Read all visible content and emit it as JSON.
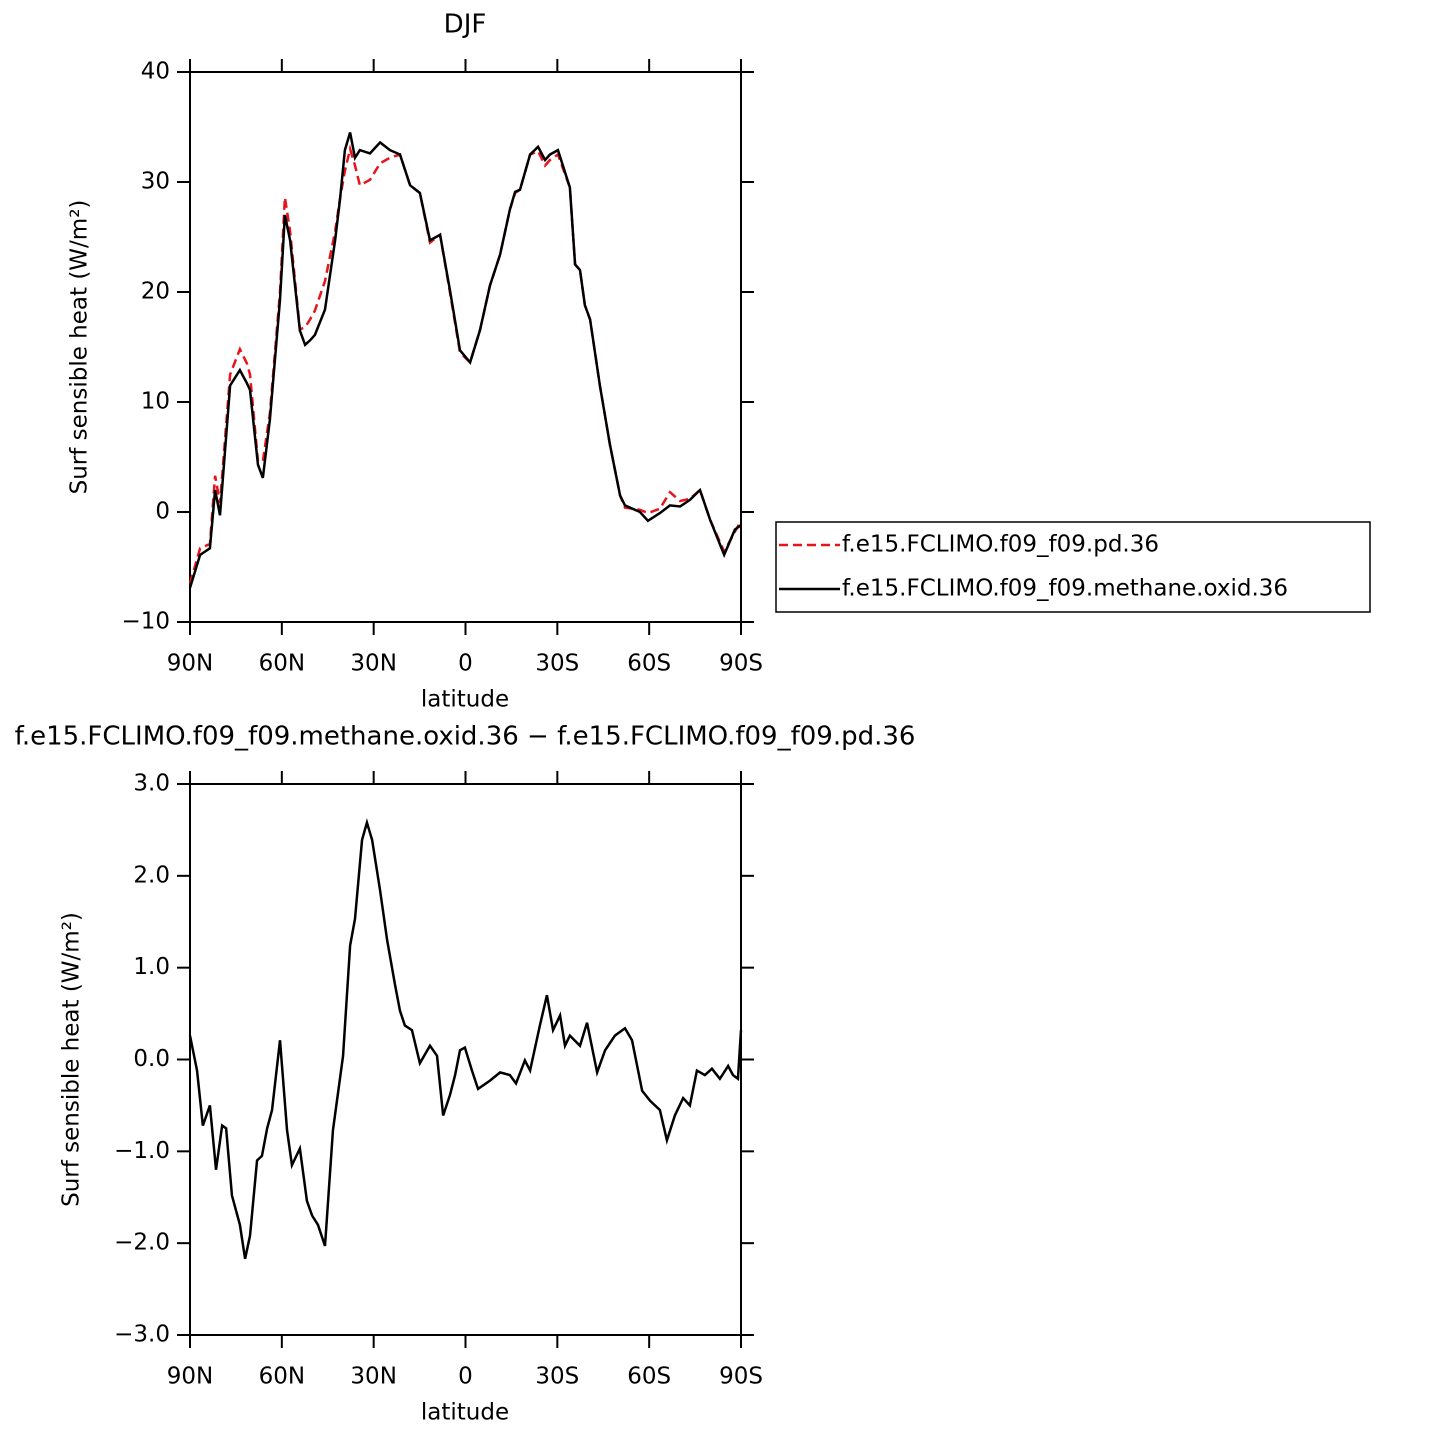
{
  "chart_data": [
    {
      "type": "line",
      "title": "DJF",
      "xlabel": "latitude",
      "ylabel": "Surf sensible heat (W/m²)",
      "x": [
        90.0,
        86.7,
        83.5,
        81.8,
        80.2,
        76.9,
        73.7,
        71.4,
        70.4,
        67.8,
        66.2,
        63.9,
        60.6,
        59.0,
        57.3,
        54.1,
        52.4,
        50.8,
        49.2,
        45.9,
        42.6,
        41.0,
        39.4,
        37.7,
        36.1,
        34.5,
        31.2,
        27.9,
        24.7,
        21.4,
        18.1,
        14.9,
        11.6,
        8.3,
        5.1,
        1.8,
        -1.5,
        -4.7,
        -8.0,
        -11.3,
        -14.5,
        -16.2,
        -17.8,
        -21.1,
        -23.7,
        -26.0,
        -27.6,
        -30.2,
        -34.1,
        -35.8,
        -37.4,
        -39.0,
        -40.7,
        -43.9,
        -47.2,
        -50.5,
        -52.1,
        -57.0,
        -59.6,
        -63.5,
        -66.8,
        -70.1,
        -73.3,
        -76.6,
        -79.9,
        -84.5,
        -88.0,
        -90.0
      ],
      "series": [
        {
          "name": "f.e15.FCLIMO.f09_f09.pd.36",
          "color": "#e8141c",
          "dashed": true,
          "values": [
            -6.5,
            -3.3,
            -2.9,
            3.3,
            0.8,
            12.5,
            14.8,
            13.5,
            12.5,
            4.6,
            4.6,
            9.0,
            20.0,
            28.6,
            25.5,
            16.6,
            16.8,
            17.5,
            18.3,
            21.0,
            25.5,
            28.5,
            31.0,
            33.0,
            31.5,
            29.7,
            30.2,
            31.7,
            32.2,
            32.5,
            29.7,
            29.0,
            24.5,
            25.2,
            20.0,
            14.5,
            13.6,
            16.5,
            20.6,
            23.4,
            27.5,
            29.0,
            29.3,
            32.5,
            32.8,
            31.5,
            32.0,
            32.5,
            29.5,
            22.5,
            22.0,
            18.8,
            17.5,
            11.5,
            6.1,
            1.5,
            0.4,
            0.2,
            -0.1,
            0.3,
            1.8,
            1.0,
            1.2,
            2.0,
            -0.7,
            -3.6,
            -1.8,
            -0.8
          ]
        },
        {
          "name": "f.e15.FCLIMO.f09_f09.methane.oxid.36",
          "color": "#000000",
          "dashed": false,
          "values": [
            -6.9,
            -3.9,
            -3.3,
            2.0,
            -0.3,
            11.5,
            12.9,
            11.7,
            11.1,
            4.3,
            3.1,
            8.4,
            19.3,
            27.0,
            24.7,
            16.5,
            15.2,
            15.6,
            16.1,
            18.4,
            24.7,
            28.4,
            32.9,
            34.5,
            32.2,
            32.9,
            32.6,
            33.6,
            32.9,
            32.5,
            29.7,
            29.0,
            24.7,
            25.2,
            20.2,
            14.7,
            13.6,
            16.5,
            20.6,
            23.4,
            27.5,
            29.1,
            29.3,
            32.5,
            33.2,
            32.0,
            32.5,
            32.9,
            29.5,
            22.5,
            22.0,
            18.8,
            17.5,
            11.5,
            6.1,
            1.5,
            0.6,
            0.0,
            -0.8,
            -0.1,
            0.6,
            0.5,
            1.1,
            2.0,
            -0.7,
            -3.9,
            -1.6,
            -1.2
          ]
        }
      ],
      "xlim": [
        90,
        -90
      ],
      "xticks": [
        {
          "value": 90,
          "label": "90N"
        },
        {
          "value": 60,
          "label": "60N"
        },
        {
          "value": 30,
          "label": "30N"
        },
        0,
        {
          "value": -30,
          "label": "30S"
        },
        {
          "value": -60,
          "label": "60S"
        },
        {
          "value": -90,
          "label": "90S"
        }
      ],
      "ylim": [
        -10,
        40
      ],
      "yticks": [
        {
          "value": -10,
          "label": "−10"
        },
        0,
        10,
        20,
        30,
        40
      ],
      "legend": "right-outside"
    },
    {
      "type": "line",
      "title": "f.e15.FCLIMO.f09_f09.methane.oxid.36 − f.e15.FCLIMO.f09_f09.pd.36",
      "xlabel": "latitude",
      "ylabel": "Surf sensible heat (W/m²)",
      "x": [
        90.0,
        87.7,
        85.8,
        83.5,
        81.5,
        79.5,
        78.2,
        76.3,
        73.7,
        72.0,
        70.4,
        68.1,
        66.5,
        64.8,
        63.2,
        60.6,
        58.3,
        56.7,
        54.1,
        51.8,
        50.1,
        48.2,
        45.9,
        43.3,
        40.0,
        37.7,
        36.1,
        33.8,
        32.2,
        30.5,
        27.9,
        25.6,
        23.0,
        21.4,
        19.8,
        17.5,
        14.9,
        11.6,
        9.3,
        7.3,
        5.1,
        3.4,
        1.8,
        0.2,
        -2.1,
        -4.1,
        -8.0,
        -11.3,
        -14.5,
        -16.5,
        -19.4,
        -21.1,
        -24.3,
        -26.6,
        -28.6,
        -30.9,
        -32.5,
        -34.1,
        -37.4,
        -39.7,
        -43.0,
        -45.6,
        -48.8,
        -52.1,
        -54.4,
        -57.7,
        -60.3,
        -63.5,
        -65.8,
        -68.4,
        -71.1,
        -73.3,
        -75.6,
        -78.2,
        -80.5,
        -83.1,
        -85.8,
        -87.4,
        -89.0,
        -90.0
      ],
      "series": [
        {
          "color": "#000000",
          "dashed": false,
          "values": [
            0.26,
            -0.12,
            -0.72,
            -0.5,
            -1.2,
            -0.72,
            -0.75,
            -1.48,
            -1.8,
            -2.17,
            -1.92,
            -1.1,
            -1.05,
            -0.75,
            -0.55,
            0.21,
            -0.77,
            -1.15,
            -0.97,
            -1.54,
            -1.7,
            -1.8,
            -2.03,
            -0.77,
            0.04,
            1.24,
            1.53,
            2.39,
            2.58,
            2.39,
            1.84,
            1.3,
            0.81,
            0.53,
            0.37,
            0.32,
            -0.04,
            0.15,
            0.04,
            -0.61,
            -0.39,
            -0.17,
            0.1,
            0.13,
            -0.12,
            -0.32,
            -0.23,
            -0.14,
            -0.17,
            -0.26,
            -0.01,
            -0.12,
            0.37,
            0.7,
            0.32,
            0.48,
            0.15,
            0.26,
            0.15,
            0.4,
            -0.14,
            0.1,
            0.26,
            0.34,
            0.21,
            -0.34,
            -0.45,
            -0.55,
            -0.88,
            -0.61,
            -0.42,
            -0.5,
            -0.12,
            -0.17,
            -0.1,
            -0.21,
            -0.07,
            -0.17,
            -0.21,
            0.32
          ]
        }
      ],
      "xlim": [
        90,
        -90
      ],
      "xticks": [
        {
          "value": 90,
          "label": "90N"
        },
        {
          "value": 60,
          "label": "60N"
        },
        {
          "value": 30,
          "label": "30N"
        },
        0,
        {
          "value": -30,
          "label": "30S"
        },
        {
          "value": -60,
          "label": "60S"
        },
        {
          "value": -90,
          "label": "90S"
        }
      ],
      "ylim": [
        -3,
        3
      ],
      "yticks": [
        {
          "value": -3,
          "label": "−3.0"
        },
        {
          "value": -2,
          "label": "−2.0"
        },
        {
          "value": -1,
          "label": "−1.0"
        },
        {
          "value": 0,
          "label": "0.0"
        },
        {
          "value": 1,
          "label": "1.0"
        },
        {
          "value": 2,
          "label": "2.0"
        },
        {
          "value": 3,
          "label": "3.0"
        }
      ]
    }
  ]
}
